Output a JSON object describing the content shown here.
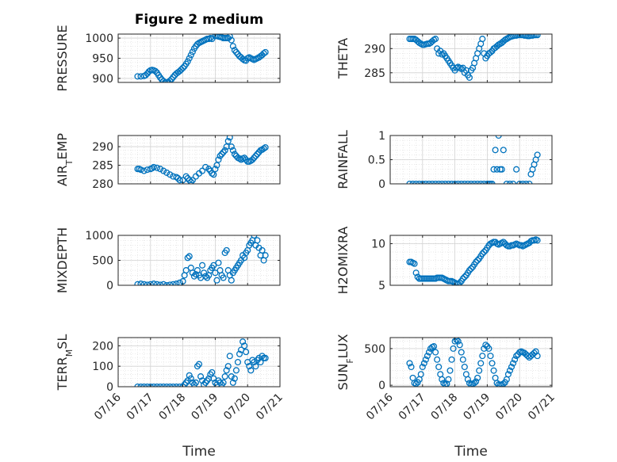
{
  "chart_data": {
    "type": "scatter",
    "title": "Figure 2 medium",
    "xlabel": "Time",
    "marker_color": "#0072BD",
    "axis_color": "#262626",
    "grid": true,
    "minor_grid": true,
    "xlim": [
      0,
      5
    ],
    "x_ticks": [
      0,
      1,
      2,
      3,
      4,
      5
    ],
    "x_tick_labels": [
      "07/16",
      "07/17",
      "07/18",
      "07/19",
      "07/20",
      "07/21"
    ],
    "panels": [
      {
        "ylabel": "PRESSURE",
        "ylim": [
          890,
          1010
        ],
        "y_ticks": [
          900,
          950,
          1000
        ],
        "y_tick_labels": [
          "900",
          "950",
          "1000"
        ],
        "x": [
          0.6,
          0.7,
          0.8,
          0.85,
          0.9,
          0.95,
          1.0,
          1.05,
          1.1,
          1.15,
          1.2,
          1.25,
          1.3,
          1.35,
          1.4,
          1.45,
          1.5,
          1.55,
          1.6,
          1.65,
          1.7,
          1.75,
          1.8,
          1.85,
          1.9,
          1.95,
          2.0,
          2.05,
          2.1,
          2.15,
          2.2,
          2.25,
          2.3,
          2.35,
          2.4,
          2.45,
          2.5,
          2.55,
          2.6,
          2.65,
          2.7,
          2.75,
          2.8,
          2.85,
          2.9,
          3.0,
          3.05,
          3.1,
          3.15,
          3.2,
          3.25,
          3.3,
          3.35,
          3.4,
          3.45,
          3.5,
          3.55,
          3.6,
          3.65,
          3.7,
          3.75,
          3.8,
          3.85,
          3.9,
          3.95,
          4.0,
          4.05,
          4.1,
          4.15,
          4.2,
          4.25,
          4.3,
          4.35,
          4.4,
          4.45,
          4.5,
          4.55
        ],
        "y": [
          905,
          905,
          906,
          908,
          912,
          917,
          920,
          921,
          920,
          918,
          914,
          908,
          902,
          897,
          893,
          890,
          890,
          891,
          894,
          898,
          903,
          908,
          912,
          915,
          918,
          922,
          926,
          930,
          936,
          942,
          950,
          958,
          966,
          974,
          980,
          985,
          988,
          990,
          992,
          994,
          996,
          998,
          998,
          1000,
          998,
          1005,
          1006,
          1004,
          1003,
          1002,
          1000,
          1000,
          1000,
          1000,
          1004,
          995,
          980,
          970,
          965,
          960,
          955,
          952,
          948,
          945,
          944,
          950,
          952,
          950,
          948,
          946,
          948,
          950,
          952,
          955,
          958,
          962,
          965
        ]
      },
      {
        "ylabel": "THETA",
        "ylim": [
          283,
          293
        ],
        "y_ticks": [
          285,
          290
        ],
        "y_tick_labels": [
          "285",
          "290"
        ],
        "x": [
          0.6,
          0.65,
          0.7,
          0.75,
          0.8,
          0.85,
          0.9,
          0.95,
          1.0,
          1.05,
          1.1,
          1.15,
          1.2,
          1.25,
          1.3,
          1.35,
          1.4,
          1.45,
          1.5,
          1.55,
          1.6,
          1.65,
          1.7,
          1.75,
          1.8,
          1.85,
          1.9,
          1.95,
          2.0,
          2.05,
          2.1,
          2.15,
          2.2,
          2.25,
          2.3,
          2.35,
          2.4,
          2.45,
          2.5,
          2.55,
          2.6,
          2.65,
          2.7,
          2.75,
          2.8,
          2.85,
          2.9,
          2.95,
          3.0,
          3.05,
          3.1,
          3.15,
          3.2,
          3.25,
          3.3,
          3.35,
          3.4,
          3.45,
          3.5,
          3.55,
          3.6,
          3.65,
          3.7,
          3.75,
          3.8,
          3.85,
          3.9,
          3.95,
          4.0,
          4.05,
          4.1,
          4.15,
          4.2,
          4.25,
          4.3,
          4.35,
          4.4,
          4.45,
          4.5,
          4.55
        ],
        "y": [
          292,
          292,
          292,
          292,
          291.8,
          291.5,
          291.2,
          291,
          290.8,
          290.8,
          290.9,
          291,
          291,
          291.2,
          291.5,
          291.8,
          292,
          290,
          289,
          289.5,
          288.8,
          289,
          288.5,
          288,
          287.5,
          287,
          286.5,
          286,
          285.5,
          286,
          286.2,
          286,
          285.8,
          286,
          285,
          285.5,
          284.5,
          284,
          285.5,
          286,
          287,
          288,
          289,
          290,
          291,
          292,
          289,
          288,
          288.5,
          289,
          289.2,
          289.5,
          290,
          290.2,
          290.5,
          290.8,
          291,
          291.2,
          291.5,
          291.8,
          292,
          292.2,
          292.4,
          292.5,
          292.6,
          292.7,
          292.7,
          292.8,
          292.8,
          292.8,
          292.8,
          292.7,
          292.7,
          292.6,
          292.6,
          292.7,
          292.7,
          292.8,
          292.8,
          292.8
        ]
      },
      {
        "ylabel": "AIR_TEMP",
        "ylim": [
          280,
          293
        ],
        "y_ticks": [
          280,
          285,
          290
        ],
        "y_tick_labels": [
          "280",
          "285",
          "290"
        ],
        "x": [
          0.6,
          0.65,
          0.7,
          0.8,
          0.9,
          1.0,
          1.05,
          1.1,
          1.2,
          1.3,
          1.4,
          1.5,
          1.6,
          1.7,
          1.8,
          1.85,
          1.9,
          2.0,
          2.1,
          2.15,
          2.2,
          2.25,
          2.3,
          2.4,
          2.5,
          2.6,
          2.7,
          2.8,
          2.85,
          2.9,
          2.95,
          3.0,
          3.05,
          3.1,
          3.15,
          3.2,
          3.25,
          3.3,
          3.35,
          3.4,
          3.45,
          3.5,
          3.55,
          3.6,
          3.65,
          3.7,
          3.75,
          3.8,
          3.85,
          3.9,
          3.95,
          4.0,
          4.05,
          4.1,
          4.15,
          4.2,
          4.25,
          4.3,
          4.35,
          4.4,
          4.45,
          4.5,
          4.55
        ],
        "y": [
          284,
          284,
          283.8,
          283.5,
          283.8,
          284,
          284.2,
          284.5,
          284.3,
          284,
          283.5,
          283,
          282.5,
          282,
          281.8,
          281.5,
          281,
          281,
          282,
          281.5,
          281,
          280.5,
          281,
          282,
          282.8,
          283.5,
          284.5,
          284,
          283.5,
          282.8,
          282.5,
          284,
          285,
          286.5,
          287.5,
          288,
          288.5,
          289,
          290,
          291.5,
          292.5,
          290,
          289,
          288,
          287.5,
          287,
          286.8,
          286.5,
          286.8,
          287,
          286.5,
          286,
          286,
          286.2,
          286.5,
          287,
          287.5,
          288,
          288.5,
          289,
          289.2,
          289.5,
          289.8
        ]
      },
      {
        "ylabel": "RAINFALL",
        "ylim": [
          0,
          1
        ],
        "y_ticks": [
          0,
          0.5,
          1
        ],
        "y_tick_labels": [
          "0",
          "0.5",
          "1"
        ],
        "x": [
          0.6,
          0.7,
          0.8,
          0.9,
          1.0,
          1.1,
          1.2,
          1.3,
          1.4,
          1.5,
          1.6,
          1.7,
          1.8,
          1.9,
          2.0,
          2.1,
          2.2,
          2.3,
          2.4,
          2.5,
          2.6,
          2.7,
          2.8,
          2.9,
          3.0,
          3.05,
          3.1,
          3.15,
          3.2,
          3.25,
          3.3,
          3.35,
          3.4,
          3.45,
          3.5,
          3.6,
          3.7,
          3.8,
          3.9,
          4.0,
          4.1,
          4.2,
          4.3,
          4.35,
          4.4,
          4.45,
          4.5,
          4.55
        ],
        "y": [
          0,
          0,
          0,
          0,
          0,
          0,
          0,
          0,
          0,
          0,
          0,
          0,
          0,
          0,
          0,
          0,
          0,
          0,
          0,
          0,
          0,
          0,
          0,
          0,
          0,
          0,
          0,
          0,
          0.3,
          0.7,
          0.3,
          1.0,
          0.3,
          0.3,
          0.7,
          0,
          0,
          0,
          0.3,
          0,
          0,
          0,
          0,
          0.2,
          0.3,
          0.4,
          0.5,
          0.6
        ]
      },
      {
        "ylabel": "MIXDEPTH",
        "ylim": [
          0,
          1000
        ],
        "y_ticks": [
          0,
          500,
          1000
        ],
        "y_tick_labels": [
          "0",
          "500",
          "1000"
        ],
        "x": [
          0.6,
          0.7,
          0.8,
          0.9,
          1.0,
          1.1,
          1.2,
          1.3,
          1.4,
          1.5,
          1.6,
          1.7,
          1.8,
          1.9,
          2.0,
          2.05,
          2.1,
          2.15,
          2.2,
          2.25,
          2.3,
          2.35,
          2.4,
          2.45,
          2.5,
          2.55,
          2.6,
          2.65,
          2.7,
          2.75,
          2.8,
          2.85,
          2.9,
          2.95,
          3.0,
          3.05,
          3.1,
          3.15,
          3.2,
          3.25,
          3.3,
          3.35,
          3.4,
          3.45,
          3.5,
          3.55,
          3.6,
          3.65,
          3.7,
          3.75,
          3.8,
          3.85,
          3.9,
          3.95,
          4.0,
          4.05,
          4.1,
          4.15,
          4.2,
          4.25,
          4.3,
          4.35,
          4.4,
          4.45,
          4.5,
          4.55
        ],
        "y": [
          20,
          30,
          20,
          10,
          20,
          30,
          20,
          10,
          20,
          0,
          10,
          20,
          30,
          50,
          80,
          200,
          300,
          550,
          580,
          350,
          250,
          180,
          220,
          300,
          200,
          150,
          400,
          250,
          180,
          150,
          200,
          300,
          350,
          400,
          250,
          100,
          450,
          300,
          200,
          150,
          650,
          700,
          300,
          200,
          100,
          250,
          300,
          350,
          400,
          450,
          500,
          600,
          550,
          650,
          700,
          800,
          850,
          900,
          1000,
          800,
          900,
          750,
          600,
          700,
          500,
          600
        ]
      },
      {
        "ylabel": "H2OMIXRA",
        "ylim": [
          5,
          11
        ],
        "y_ticks": [
          5,
          10
        ],
        "y_tick_labels": [
          "5",
          "10"
        ],
        "x": [
          0.6,
          0.65,
          0.7,
          0.75,
          0.8,
          0.85,
          0.9,
          0.95,
          1.0,
          1.05,
          1.1,
          1.15,
          1.2,
          1.25,
          1.3,
          1.35,
          1.4,
          1.45,
          1.5,
          1.55,
          1.6,
          1.65,
          1.7,
          1.75,
          1.8,
          1.85,
          1.9,
          1.95,
          2.0,
          2.05,
          2.1,
          2.15,
          2.2,
          2.25,
          2.3,
          2.35,
          2.4,
          2.45,
          2.5,
          2.55,
          2.6,
          2.65,
          2.7,
          2.75,
          2.8,
          2.85,
          2.9,
          2.95,
          3.0,
          3.05,
          3.1,
          3.15,
          3.2,
          3.25,
          3.3,
          3.35,
          3.4,
          3.45,
          3.5,
          3.55,
          3.6,
          3.65,
          3.7,
          3.75,
          3.8,
          3.85,
          3.9,
          3.95,
          4.0,
          4.05,
          4.1,
          4.15,
          4.2,
          4.25,
          4.3,
          4.35,
          4.4,
          4.45,
          4.5,
          4.55
        ],
        "y": [
          7.8,
          7.8,
          7.7,
          7.6,
          6.5,
          6,
          5.8,
          5.8,
          5.8,
          5.8,
          5.8,
          5.8,
          5.8,
          5.8,
          5.8,
          5.8,
          5.8,
          5.9,
          5.9,
          5.9,
          5.9,
          5.8,
          5.7,
          5.6,
          5.5,
          5.5,
          5.5,
          5.4,
          5.3,
          5.2,
          5.2,
          5.3,
          5.5,
          5.8,
          6,
          6.2,
          6.5,
          6.8,
          7,
          7.2,
          7.5,
          7.8,
          8,
          8.2,
          8.5,
          8.8,
          9,
          9.2,
          9.5,
          9.8,
          10,
          10.1,
          10.2,
          10.2,
          10,
          9.9,
          10,
          10.1,
          10.2,
          10,
          9.8,
          9.7,
          9.7,
          9.8,
          9.8,
          9.9,
          10,
          9.9,
          9.8,
          9.8,
          9.7,
          9.8,
          9.9,
          10,
          10.1,
          10.3,
          10.4,
          10.4,
          10.5,
          10.4
        ]
      },
      {
        "ylabel": "TERR_MSL",
        "ylim": [
          0,
          240
        ],
        "y_ticks": [
          0,
          100,
          200
        ],
        "y_tick_labels": [
          "0",
          "100",
          "200"
        ],
        "x": [
          0.6,
          0.7,
          0.8,
          0.9,
          1.0,
          1.1,
          1.2,
          1.3,
          1.4,
          1.5,
          1.6,
          1.7,
          1.8,
          1.9,
          2.0,
          2.05,
          2.1,
          2.15,
          2.2,
          2.25,
          2.3,
          2.35,
          2.4,
          2.45,
          2.5,
          2.55,
          2.6,
          2.65,
          2.7,
          2.75,
          2.8,
          2.85,
          2.9,
          2.95,
          3.0,
          3.05,
          3.1,
          3.15,
          3.2,
          3.25,
          3.3,
          3.35,
          3.4,
          3.45,
          3.5,
          3.55,
          3.6,
          3.65,
          3.7,
          3.75,
          3.8,
          3.85,
          3.9,
          3.95,
          4.0,
          4.05,
          4.1,
          4.15,
          4.2,
          4.25,
          4.3,
          4.35,
          4.4,
          4.45,
          4.5,
          4.55
        ],
        "y": [
          0,
          0,
          0,
          0,
          0,
          0,
          0,
          0,
          0,
          0,
          0,
          0,
          0,
          0,
          0,
          10,
          20,
          30,
          55,
          40,
          20,
          10,
          20,
          100,
          110,
          50,
          30,
          10,
          20,
          30,
          40,
          60,
          70,
          40,
          20,
          10,
          30,
          20,
          10,
          20,
          50,
          80,
          100,
          150,
          50,
          20,
          40,
          80,
          120,
          160,
          180,
          220,
          200,
          170,
          120,
          100,
          80,
          130,
          120,
          100,
          130,
          140,
          120,
          150,
          140,
          140
        ]
      },
      {
        "ylabel": "SUN_FLUX",
        "ylim": [
          -20,
          650
        ],
        "y_ticks": [
          0,
          500
        ],
        "y_tick_labels": [
          "0",
          "500"
        ],
        "x": [
          0.6,
          0.65,
          0.7,
          0.75,
          0.8,
          0.85,
          0.9,
          0.95,
          1.0,
          1.05,
          1.1,
          1.15,
          1.2,
          1.25,
          1.3,
          1.35,
          1.4,
          1.45,
          1.5,
          1.55,
          1.6,
          1.65,
          1.7,
          1.75,
          1.8,
          1.85,
          1.9,
          1.95,
          2.0,
          2.05,
          2.1,
          2.15,
          2.2,
          2.25,
          2.3,
          2.35,
          2.4,
          2.45,
          2.5,
          2.55,
          2.6,
          2.65,
          2.7,
          2.75,
          2.8,
          2.85,
          2.9,
          2.95,
          3.0,
          3.05,
          3.1,
          3.15,
          3.2,
          3.25,
          3.3,
          3.35,
          3.4,
          3.45,
          3.5,
          3.55,
          3.6,
          3.65,
          3.7,
          3.75,
          3.8,
          3.85,
          3.9,
          3.95,
          4.0,
          4.05,
          4.1,
          4.15,
          4.2,
          4.25,
          4.3,
          4.35,
          4.4,
          4.45,
          4.5,
          4.55
        ],
        "y": [
          300,
          250,
          100,
          30,
          20,
          40,
          80,
          150,
          250,
          300,
          350,
          400,
          450,
          500,
          520,
          530,
          450,
          350,
          250,
          150,
          80,
          30,
          10,
          20,
          80,
          200,
          350,
          500,
          600,
          620,
          600,
          550,
          450,
          350,
          250,
          150,
          80,
          30,
          10,
          20,
          30,
          50,
          100,
          200,
          300,
          400,
          500,
          550,
          530,
          500,
          400,
          300,
          200,
          100,
          30,
          10,
          5,
          10,
          20,
          40,
          80,
          150,
          200,
          250,
          300,
          350,
          400,
          420,
          450,
          460,
          450,
          440,
          420,
          400,
          380,
          400,
          420,
          440,
          460,
          400
        ]
      }
    ]
  }
}
